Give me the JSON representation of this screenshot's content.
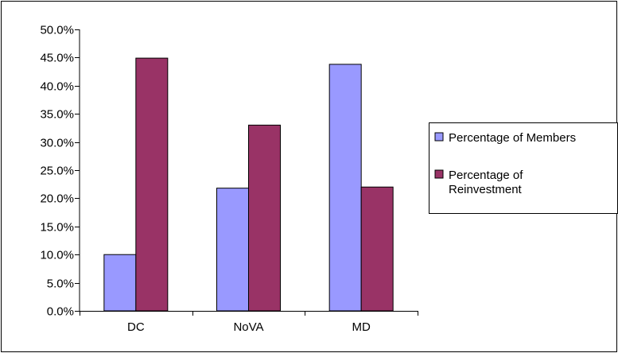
{
  "chart_data": {
    "type": "bar",
    "title": "",
    "xlabel": "",
    "ylabel": "",
    "categories": [
      "DC",
      "NoVA",
      "MD"
    ],
    "series": [
      {
        "name": "Percentage of Members",
        "values": [
          10.0,
          21.8,
          43.8
        ],
        "color": "#9999ff",
        "legend_lines": [
          "Percentage of Members"
        ]
      },
      {
        "name": "Percentage of Reinvestment",
        "values": [
          44.9,
          33.0,
          22.0
        ],
        "color": "#993366",
        "legend_lines": [
          "Percentage of",
          "Reinvestment"
        ]
      }
    ],
    "ylim": [
      0,
      50
    ],
    "y_ticks": [
      0,
      5,
      10,
      15,
      20,
      25,
      30,
      35,
      40,
      45,
      50
    ],
    "y_tick_labels": [
      "0.0%",
      "5.0%",
      "10.0%",
      "15.0%",
      "20.0%",
      "25.0%",
      "30.0%",
      "35.0%",
      "40.0%",
      "45.0%",
      "50.0%"
    ],
    "grid": false,
    "legend_position": "right"
  }
}
